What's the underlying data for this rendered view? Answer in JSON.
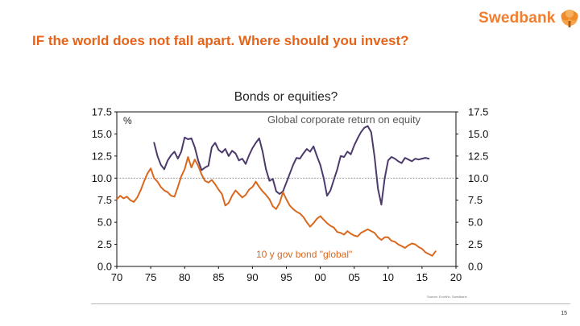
{
  "brand": {
    "name": "Swedbank",
    "logo_icon": "swedbank-oak-tree-icon",
    "color": "#f27d2c"
  },
  "slide": {
    "title": "IF the world does not fall apart. Where should you invest?",
    "title_color": "#e5641a",
    "page_number": "15"
  },
  "source_note": "Source: EcoWin, Swedbank",
  "chart_data": {
    "type": "line",
    "title": "Bonds or equities?",
    "ylabel": "%",
    "xlabel": "",
    "xlim": [
      1970,
      2020
    ],
    "ylim": [
      0,
      17.5
    ],
    "x_ticks": [
      1970,
      1975,
      1980,
      1985,
      1990,
      1995,
      2000,
      2005,
      2010,
      2015,
      2020
    ],
    "x_tick_labels": [
      "70",
      "75",
      "80",
      "85",
      "90",
      "95",
      "00",
      "05",
      "10",
      "15",
      "20"
    ],
    "y_ticks": [
      0,
      2.5,
      5,
      7.5,
      10,
      12.5,
      15,
      17.5
    ],
    "y_tick_labels": [
      "0.0",
      "2.5",
      "5.0",
      "7.5",
      "10.0",
      "12.5",
      "15.0",
      "17.5"
    ],
    "grid": false,
    "reference_line": 10,
    "series": [
      {
        "name": "Global corporate return on equity",
        "color": "#4b3a6b",
        "x": [
          1975.5,
          1976,
          1976.5,
          1977,
          1977.5,
          1978,
          1978.5,
          1979,
          1979.5,
          1980,
          1980.5,
          1981,
          1981.5,
          1982,
          1982.5,
          1983,
          1983.5,
          1984,
          1984.5,
          1985,
          1985.5,
          1986,
          1986.5,
          1987,
          1987.5,
          1988,
          1988.5,
          1989,
          1989.5,
          1990,
          1990.5,
          1991,
          1991.5,
          1992,
          1992.5,
          1993,
          1993.5,
          1994,
          1994.5,
          1995,
          1995.5,
          1996,
          1996.5,
          1997,
          1997.5,
          1998,
          1998.5,
          1999,
          1999.5,
          2000,
          2000.5,
          2001,
          2001.5,
          2002,
          2002.5,
          2003,
          2003.5,
          2004,
          2004.5,
          2005,
          2005.5,
          2006,
          2006.5,
          2007,
          2007.5,
          2008,
          2008.5,
          2009,
          2009.5,
          2010,
          2010.5,
          2011,
          2011.5,
          2012,
          2012.5,
          2013,
          2013.5,
          2014,
          2014.5,
          2015,
          2015.5,
          2016
        ],
        "values": [
          14.0,
          12.5,
          11.5,
          11.0,
          12.0,
          12.6,
          13.0,
          12.2,
          13.0,
          14.6,
          14.4,
          14.5,
          13.5,
          12.0,
          10.9,
          11.2,
          11.4,
          13.5,
          14.0,
          13.2,
          12.9,
          13.3,
          12.5,
          13.1,
          12.8,
          12.0,
          12.2,
          11.6,
          12.6,
          13.4,
          14.0,
          14.5,
          13.0,
          11.0,
          9.7,
          9.9,
          8.5,
          8.2,
          8.5,
          9.5,
          10.5,
          11.5,
          12.3,
          12.2,
          12.8,
          13.3,
          13.0,
          13.6,
          12.5,
          11.5,
          10.0,
          8.0,
          8.6,
          9.8,
          11.0,
          12.5,
          12.4,
          13.0,
          12.7,
          13.7,
          14.5,
          15.2,
          15.7,
          15.9,
          15.2,
          12.4,
          8.8,
          7.0,
          10.0,
          12.0,
          12.4,
          12.2,
          11.9,
          11.7,
          12.3,
          12.1,
          11.9,
          12.2,
          12.1,
          12.2,
          12.3,
          12.2
        ]
      },
      {
        "name": "10 y gov bond \"global\"",
        "color": "#d9681f",
        "x": [
          1970,
          1970.5,
          1971,
          1971.5,
          1972,
          1972.5,
          1973,
          1973.5,
          1974,
          1974.5,
          1975,
          1975.5,
          1976,
          1976.5,
          1977,
          1977.5,
          1978,
          1978.5,
          1979,
          1979.5,
          1980,
          1980.5,
          1981,
          1981.5,
          1982,
          1982.5,
          1983,
          1983.5,
          1984,
          1984.5,
          1985,
          1985.5,
          1986,
          1986.5,
          1987,
          1987.5,
          1988,
          1988.5,
          1989,
          1989.5,
          1990,
          1990.5,
          1991,
          1991.5,
          1992,
          1992.5,
          1993,
          1993.5,
          1994,
          1994.5,
          1995,
          1995.5,
          1996,
          1996.5,
          1997,
          1997.5,
          1998,
          1998.5,
          1999,
          1999.5,
          2000,
          2000.5,
          2001,
          2001.5,
          2002,
          2002.5,
          2003,
          2003.5,
          2004,
          2004.5,
          2005,
          2005.5,
          2006,
          2006.5,
          2007,
          2007.5,
          2008,
          2008.5,
          2009,
          2009.5,
          2010,
          2010.5,
          2011,
          2011.5,
          2012,
          2012.5,
          2013,
          2013.5,
          2014,
          2014.5,
          2015,
          2015.5,
          2016,
          2016.5,
          2017
        ],
        "values": [
          7.6,
          8.0,
          7.7,
          7.9,
          7.5,
          7.3,
          7.8,
          8.6,
          9.6,
          10.5,
          11.1,
          10.0,
          9.6,
          9.0,
          8.6,
          8.4,
          8.0,
          7.9,
          9.0,
          10.2,
          11.0,
          12.4,
          11.2,
          12.1,
          11.4,
          10.4,
          9.7,
          9.5,
          9.8,
          9.3,
          8.7,
          8.2,
          6.9,
          7.2,
          8.0,
          8.6,
          8.2,
          7.8,
          8.1,
          8.7,
          9.0,
          9.6,
          9.0,
          8.5,
          8.1,
          7.6,
          6.8,
          6.5,
          7.2,
          8.4,
          7.6,
          6.9,
          6.5,
          6.2,
          6.0,
          5.6,
          5.0,
          4.5,
          4.9,
          5.4,
          5.7,
          5.3,
          4.9,
          4.6,
          4.4,
          3.9,
          3.8,
          3.6,
          4.0,
          3.7,
          3.5,
          3.4,
          3.8,
          4.0,
          4.2,
          4.0,
          3.8,
          3.3,
          3.0,
          3.3,
          3.3,
          2.9,
          2.8,
          2.5,
          2.3,
          2.1,
          2.4,
          2.6,
          2.5,
          2.2,
          2.0,
          1.6,
          1.4,
          1.2,
          1.7
        ]
      }
    ]
  }
}
